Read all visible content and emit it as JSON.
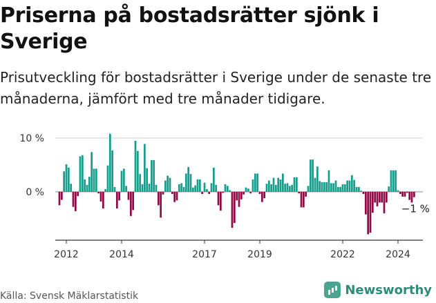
{
  "title": "Priserna på bostadsrätter sjönk i Sverige",
  "subtitle": "Prisutveckling för bostadsrätter i Sverige under de senaste tre månaderna, jämfört med tre månader tidigare.",
  "source": "Källa: Svensk Mäklarstatistik",
  "brand": "Newsworthy",
  "colors": {
    "positive": "#1a9c8c",
    "negative": "#8e0b45",
    "axis": "#333333",
    "grid": "#cccccc"
  },
  "chart_data": {
    "type": "bar",
    "title": "Priserna på bostadsrätter sjönk i Sverige",
    "xlabel": "",
    "ylabel": "",
    "x_start": 2011.6,
    "x_end": 2024.9,
    "ylim": [
      -9,
      10
    ],
    "y_ticks": [
      {
        "value": 10,
        "label": "10 %"
      },
      {
        "value": 0,
        "label": "0 %"
      }
    ],
    "x_ticks": [
      {
        "value": 2012,
        "label": "2012"
      },
      {
        "value": 2014,
        "label": "2014"
      },
      {
        "value": 2017,
        "label": "2017"
      },
      {
        "value": 2019,
        "label": "2019"
      },
      {
        "value": 2022,
        "label": "2022"
      },
      {
        "value": 2024,
        "label": "2024"
      }
    ],
    "month_start": "2011-10",
    "values": [
      -2.5,
      -1.5,
      3.8,
      5.1,
      4.5,
      1.5,
      -2.8,
      -3.6,
      -0.8,
      6.6,
      6.8,
      2.3,
      1.3,
      2.8,
      7.4,
      4.3,
      4.3,
      -0.3,
      -1.8,
      -3.1,
      0.5,
      4.9,
      10.8,
      7.7,
      0.9,
      -3.1,
      -1.6,
      3.9,
      4.3,
      1.1,
      -1.5,
      -4.5,
      -3.4,
      9.5,
      7.6,
      3.3,
      1.4,
      8.9,
      4.4,
      1.5,
      5.9,
      5.9,
      1.3,
      -2.5,
      -4.8,
      -0.5,
      2.1,
      3.0,
      2.6,
      -0.4,
      -1.9,
      -1.6,
      1.4,
      1.6,
      0.9,
      3.4,
      4.6,
      3.3,
      0.8,
      1.2,
      2.3,
      2.3,
      -0.4,
      1.7,
      0.5,
      -0.4,
      1.6,
      4.5,
      1.3,
      -2.5,
      -3.5,
      -0.2,
      1.4,
      1.1,
      0.3,
      -6.7,
      -5.8,
      -1.6,
      -2.8,
      -1.4,
      -0.5,
      0.8,
      0.6,
      -0.3,
      2.3,
      3.4,
      3.4,
      -0.4,
      -1.9,
      -1.2,
      1.5,
      2.1,
      1.4,
      2.6,
      1.3,
      2.6,
      2.3,
      3.4,
      1.5,
      1.6,
      1.1,
      1.3,
      2.7,
      2.7,
      -0.3,
      -2.9,
      -2.9,
      -0.9,
      1.1,
      6.0,
      6.0,
      2.6,
      4.7,
      2.0,
      1.8,
      1.8,
      1.8,
      4.0,
      1.6,
      1.6,
      2.1,
      0.9,
      0.9,
      1.4,
      1.4,
      2.1,
      2.1,
      3.1,
      2.2,
      0.9,
      0.9,
      0.2,
      -0.4,
      -4.2,
      -7.9,
      -7.6,
      -3.9,
      -2.0,
      -2.7,
      -2.0,
      -2.0,
      -4.0,
      -2.0,
      1.0,
      4.0,
      4.0,
      4.0,
      0.3,
      -0.4,
      -0.9,
      -0.9,
      -0.2,
      -1.5,
      -2.0,
      -1.0
    ],
    "last_value_label": "−1 %"
  }
}
